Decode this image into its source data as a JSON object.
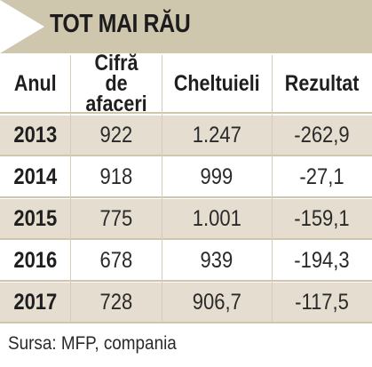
{
  "title": "TOT MAI RĂU",
  "source": "Sursa: MFP, compania",
  "colors": {
    "title_band": "#cfc6ae",
    "shaded_row": "#e4ddd0",
    "title_text": "#1c1c1c"
  },
  "chart_data": {
    "type": "table",
    "title": "TOT MAI RĂU",
    "columns": [
      "Anul",
      "Cifră de afaceri",
      "Cheltuieli",
      "Rezultat"
    ],
    "rows": [
      [
        "2013",
        "922",
        "1.247",
        "-262,9"
      ],
      [
        "2014",
        "918",
        "999",
        "-27,1"
      ],
      [
        "2015",
        "775",
        "1.001",
        "-159,1"
      ],
      [
        "2016",
        "678",
        "939",
        "-194,3"
      ],
      [
        "2017",
        "728",
        "906,7",
        "-117,5"
      ]
    ]
  }
}
